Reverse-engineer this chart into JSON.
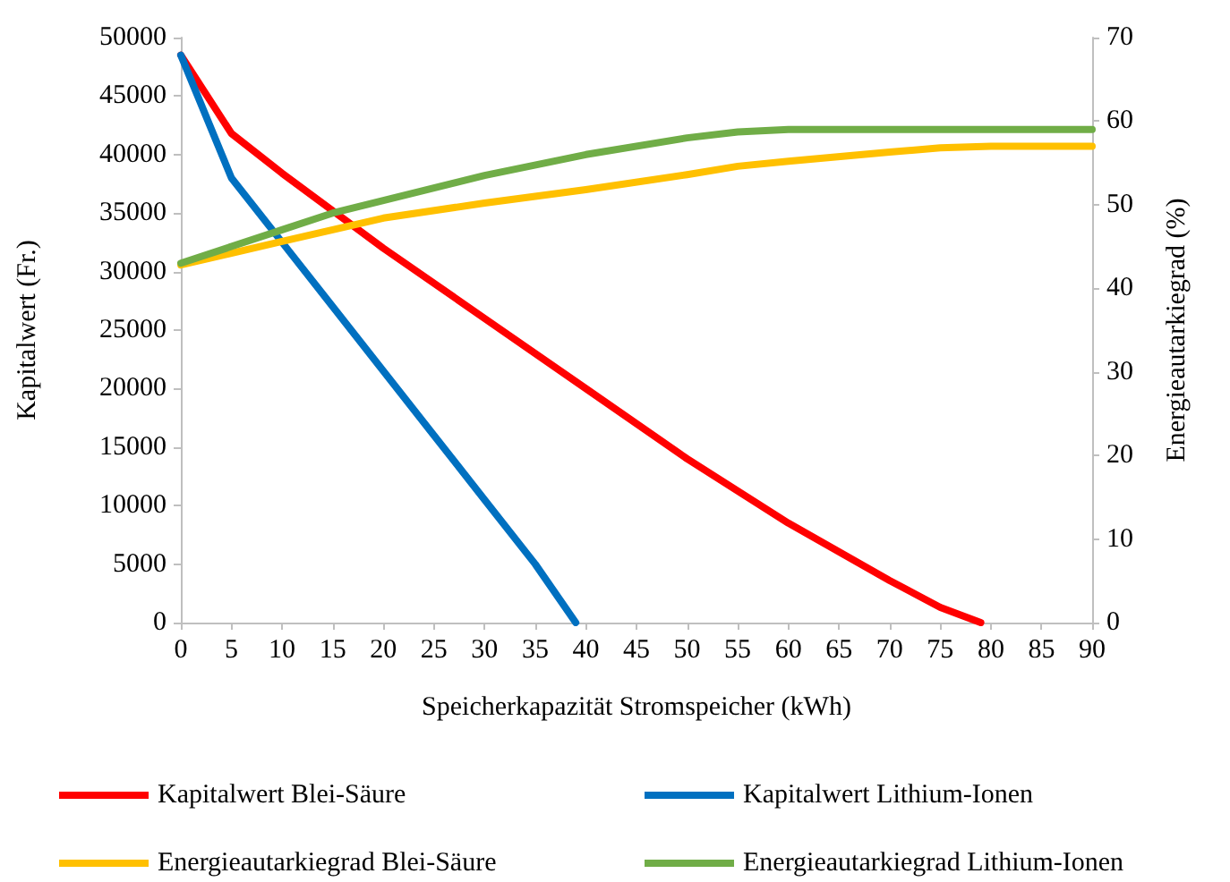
{
  "chart_data": {
    "type": "line",
    "xlabel": "Speicherkapazität Stromspeicher (kWh)",
    "ylabel": "Kapitalwert (Fr.)",
    "y2label": "Energieautarkiegrad (%)",
    "xlim": [
      0,
      90
    ],
    "xticks": [
      0,
      5,
      10,
      15,
      20,
      25,
      30,
      35,
      40,
      45,
      50,
      55,
      60,
      65,
      70,
      75,
      80,
      85,
      90
    ],
    "ylim": [
      0,
      50000
    ],
    "yticks": [
      0,
      5000,
      10000,
      15000,
      20000,
      25000,
      30000,
      35000,
      40000,
      45000,
      50000
    ],
    "y2lim": [
      0,
      70
    ],
    "y2ticks": [
      0,
      10,
      20,
      30,
      40,
      50,
      60,
      70
    ],
    "grid": false,
    "legend": "bottom",
    "marker": "none",
    "line_style": "solid",
    "series": [
      {
        "name": "Kapitalwert Blei-Säure",
        "color": "#ff0000",
        "x": [
          0,
          5,
          10,
          20,
          30,
          40,
          50,
          60,
          70,
          75,
          79
        ],
        "values": [
          48500,
          41800,
          38400,
          32000,
          26000,
          20000,
          14000,
          8500,
          3600,
          1300,
          0
        ]
      },
      {
        "name": "Kapitalwert Lithium-Ionen",
        "color": "#0070c0",
        "x": [
          0,
          5,
          10,
          15,
          20,
          25,
          30,
          35,
          39
        ],
        "values": [
          48500,
          38000,
          32500,
          27000,
          21500,
          16000,
          10500,
          5000,
          0
        ]
      },
      {
        "name": "Energieautarkiegrad Blei-Säure",
        "color": "#ffc000",
        "axis": "y2",
        "x": [
          0,
          10,
          20,
          30,
          40,
          50,
          55,
          60,
          70,
          75,
          80,
          90
        ],
        "values": [
          42.8,
          45.6,
          48.4,
          50.2,
          51.8,
          53.6,
          54.6,
          55.2,
          56.3,
          56.8,
          57,
          57
        ]
      },
      {
        "name": "Energieautarkiegrad Lithium-Ionen",
        "color": "#70ad47",
        "axis": "y2",
        "x": [
          0,
          5,
          10,
          15,
          20,
          30,
          40,
          50,
          55,
          60,
          70,
          80,
          90
        ],
        "values": [
          43,
          45,
          47,
          49,
          50.5,
          53.5,
          56,
          58,
          58.7,
          59,
          59,
          59,
          59
        ]
      }
    ]
  }
}
